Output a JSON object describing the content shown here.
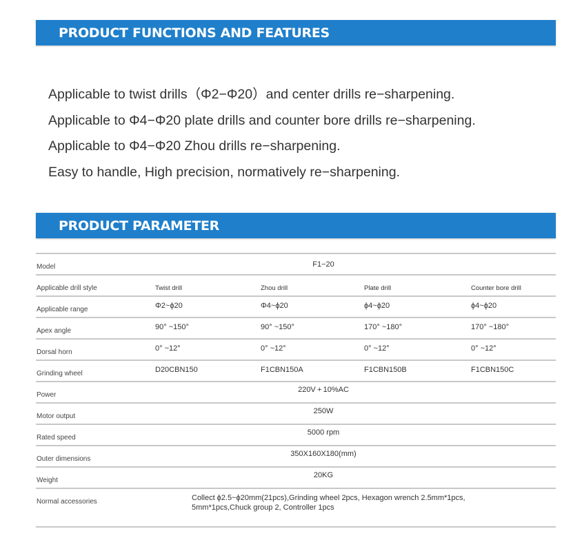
{
  "features_header": "PRODUCT FUNCTIONS AND FEATURES",
  "features": [
    "Applicable to twist drills（Φ2−Φ20）and center drills re−sharpening.",
    "Applicable to Φ4−Φ20 plate drills and counter bore drills re−sharpening.",
    "Applicable to Φ4−Φ20 Zhou drills re−sharpening.",
    "Easy to handle, High precision, normatively re−sharpening."
  ],
  "parameter_header": "PRODUCT PARAMETER",
  "table": {
    "model": {
      "label": "Model",
      "value": "F1−20"
    },
    "style": {
      "label": "Applicable drill style",
      "values": [
        "Twist drill",
        "Zhou drill",
        "Plate drill",
        "Counter bore drill"
      ]
    },
    "range": {
      "label": "Applicable range",
      "values": [
        "Φ2~ϕ20",
        "Φ4~ϕ20",
        "ϕ4~ϕ20",
        "ϕ4~ϕ20"
      ]
    },
    "apex": {
      "label": "Apex angle",
      "values": [
        "90°  ~150°",
        "90°  ~150°",
        "170°  ~180°",
        "170°  ~180°"
      ]
    },
    "dorsal": {
      "label": "Dorsal horn",
      "values": [
        "0°  ~12°",
        "0°  ~12°",
        "0°  ~12°",
        "0°  ~12°"
      ]
    },
    "wheel": {
      "label": "Grinding wheel",
      "values": [
        "D20CBN150",
        "F1CBN150A",
        "F1CBN150B",
        "F1CBN150C"
      ]
    },
    "power": {
      "label": "Power",
      "value": "220V + 10%AC"
    },
    "motor": {
      "label": "Motor output",
      "value": "250W"
    },
    "speed": {
      "label": "Rated speed",
      "value": "5000 rpm"
    },
    "dims": {
      "label": "Outer dimensions",
      "value": "350X160X180(mm)"
    },
    "weight": {
      "label": "Weight",
      "value": "20KG"
    },
    "accessories": {
      "label": "Normal accessories",
      "value": "Collect ϕ2.5~ϕ20mm(21pcs),Grinding wheel 2pcs, Hexagon wrench 2.5mm*1pcs, 5mm*1pcs,Chuck group 2, Controller 1pcs"
    }
  }
}
